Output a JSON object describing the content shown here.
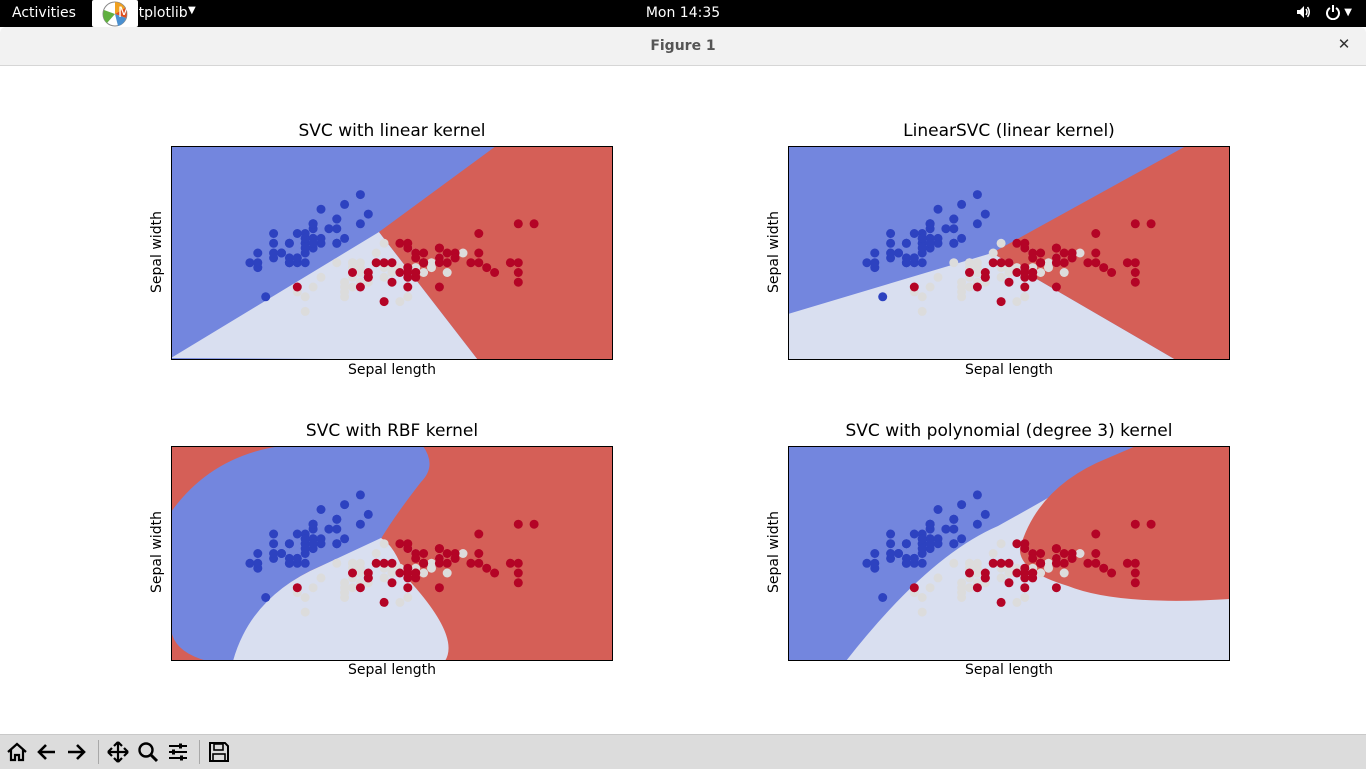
{
  "topbar": {
    "activities": "Activities",
    "app_name": "Matplotlib",
    "clock": "Mon 14:35"
  },
  "window": {
    "title": "Figure 1"
  },
  "icons": {
    "app": "matplotlib-icon",
    "volume": "volume-icon",
    "power": "power-icon",
    "close": "close-icon",
    "toolbar": [
      "home-icon",
      "back-icon",
      "forward-icon",
      "pan-icon",
      "zoom-icon",
      "subplots-config-icon",
      "save-icon"
    ]
  },
  "colors": {
    "class_0_region": "#7386de",
    "class_1_region": "#d9dff0",
    "class_2_region": "#d55f57",
    "class_0_point": "#2d42c0",
    "class_1_point": "#dcdcdc",
    "class_2_point": "#b40426"
  },
  "chart_data": [
    {
      "type": "scatter",
      "title": "SVC with linear kernel",
      "xlabel": "Sepal length",
      "ylabel": "Sepal width",
      "ticks": "hidden",
      "xlim": [
        3.3,
        8.9
      ],
      "ylim": [
        1.0,
        5.4
      ]
    },
    {
      "type": "scatter",
      "title": "LinearSVC (linear kernel)",
      "xlabel": "Sepal length",
      "ylabel": "Sepal width",
      "ticks": "hidden",
      "xlim": [
        3.3,
        8.9
      ],
      "ylim": [
        1.0,
        5.4
      ]
    },
    {
      "type": "scatter",
      "title": "SVC with RBF kernel",
      "xlabel": "Sepal length",
      "ylabel": "Sepal width",
      "ticks": "hidden",
      "xlim": [
        3.3,
        8.9
      ],
      "ylim": [
        1.0,
        5.4
      ]
    },
    {
      "type": "scatter",
      "title": "SVC with polynomial (degree 3) kernel",
      "xlabel": "Sepal length",
      "ylabel": "Sepal width",
      "ticks": "hidden",
      "xlim": [
        3.3,
        8.9
      ],
      "ylim": [
        1.0,
        5.4
      ]
    }
  ],
  "points": {
    "class_0": [
      [
        5.1,
        3.5
      ],
      [
        4.9,
        3.0
      ],
      [
        4.7,
        3.2
      ],
      [
        4.6,
        3.1
      ],
      [
        5.0,
        3.6
      ],
      [
        5.4,
        3.9
      ],
      [
        4.6,
        3.4
      ],
      [
        5.0,
        3.4
      ],
      [
        4.4,
        2.9
      ],
      [
        4.9,
        3.1
      ],
      [
        5.4,
        3.7
      ],
      [
        4.8,
        3.4
      ],
      [
        4.8,
        3.0
      ],
      [
        4.3,
        3.0
      ],
      [
        5.8,
        4.0
      ],
      [
        5.7,
        4.4
      ],
      [
        5.4,
        3.9
      ],
      [
        5.1,
        3.5
      ],
      [
        5.7,
        3.8
      ],
      [
        5.1,
        3.8
      ],
      [
        5.4,
        3.4
      ],
      [
        5.1,
        3.7
      ],
      [
        4.6,
        3.6
      ],
      [
        5.1,
        3.3
      ],
      [
        4.8,
        3.4
      ],
      [
        5.0,
        3.0
      ],
      [
        5.0,
        3.4
      ],
      [
        5.2,
        3.5
      ],
      [
        5.2,
        3.4
      ],
      [
        4.7,
        3.2
      ],
      [
        4.8,
        3.1
      ],
      [
        5.4,
        3.4
      ],
      [
        5.2,
        4.1
      ],
      [
        5.5,
        4.2
      ],
      [
        4.9,
        3.1
      ],
      [
        5.0,
        3.2
      ],
      [
        5.5,
        3.5
      ],
      [
        4.9,
        3.6
      ],
      [
        4.4,
        3.0
      ],
      [
        5.1,
        3.4
      ],
      [
        5.0,
        3.5
      ],
      [
        4.5,
        2.3
      ],
      [
        4.4,
        3.2
      ],
      [
        5.0,
        3.5
      ],
      [
        5.1,
        3.8
      ],
      [
        4.8,
        3.0
      ],
      [
        5.1,
        3.8
      ],
      [
        4.6,
        3.2
      ],
      [
        5.3,
        3.7
      ],
      [
        5.0,
        3.3
      ]
    ],
    "class_1": [
      [
        7.0,
        3.2
      ],
      [
        6.4,
        3.2
      ],
      [
        6.9,
        3.1
      ],
      [
        5.5,
        2.3
      ],
      [
        6.5,
        2.8
      ],
      [
        5.7,
        2.8
      ],
      [
        6.3,
        3.3
      ],
      [
        4.9,
        2.4
      ],
      [
        6.6,
        2.9
      ],
      [
        5.2,
        2.7
      ],
      [
        5.0,
        2.0
      ],
      [
        5.9,
        3.0
      ],
      [
        6.0,
        2.2
      ],
      [
        6.1,
        2.9
      ],
      [
        5.6,
        2.9
      ],
      [
        6.7,
        3.1
      ],
      [
        5.6,
        3.0
      ],
      [
        5.8,
        2.7
      ],
      [
        6.2,
        2.2
      ],
      [
        5.6,
        2.5
      ],
      [
        5.9,
        3.2
      ],
      [
        6.1,
        2.8
      ],
      [
        6.3,
        2.5
      ],
      [
        6.1,
        2.8
      ],
      [
        6.4,
        2.9
      ],
      [
        6.6,
        3.0
      ],
      [
        6.8,
        2.8
      ],
      [
        6.7,
        3.0
      ],
      [
        6.0,
        2.9
      ],
      [
        5.7,
        2.6
      ],
      [
        5.5,
        2.4
      ],
      [
        5.8,
        2.7
      ],
      [
        6.0,
        2.7
      ],
      [
        5.4,
        3.0
      ],
      [
        6.0,
        3.4
      ],
      [
        6.7,
        3.1
      ],
      [
        6.3,
        2.3
      ],
      [
        5.6,
        3.0
      ],
      [
        5.5,
        2.5
      ],
      [
        5.5,
        2.6
      ],
      [
        6.1,
        3.0
      ],
      [
        5.8,
        2.6
      ],
      [
        5.0,
        2.3
      ],
      [
        5.6,
        2.7
      ],
      [
        5.7,
        3.0
      ],
      [
        5.7,
        2.9
      ],
      [
        6.2,
        2.9
      ],
      [
        5.1,
        2.5
      ],
      [
        5.7,
        2.8
      ]
    ],
    "class_2": [
      [
        6.3,
        3.3
      ],
      [
        5.8,
        2.7
      ],
      [
        7.1,
        3.0
      ],
      [
        6.3,
        2.9
      ],
      [
        6.5,
        3.0
      ],
      [
        7.6,
        3.0
      ],
      [
        4.9,
        2.5
      ],
      [
        7.3,
        2.9
      ],
      [
        6.7,
        2.5
      ],
      [
        7.2,
        3.6
      ],
      [
        6.5,
        3.2
      ],
      [
        6.4,
        2.7
      ],
      [
        6.8,
        3.0
      ],
      [
        5.7,
        2.5
      ],
      [
        5.8,
        2.8
      ],
      [
        6.4,
        3.2
      ],
      [
        6.5,
        3.0
      ],
      [
        7.7,
        3.8
      ],
      [
        7.7,
        2.6
      ],
      [
        6.0,
        2.2
      ],
      [
        6.9,
        3.2
      ],
      [
        5.6,
        2.8
      ],
      [
        7.7,
        2.8
      ],
      [
        6.3,
        2.7
      ],
      [
        6.7,
        3.3
      ],
      [
        7.2,
        3.2
      ],
      [
        6.2,
        2.8
      ],
      [
        6.1,
        3.0
      ],
      [
        6.4,
        2.8
      ],
      [
        7.2,
        3.0
      ],
      [
        7.4,
        2.8
      ],
      [
        7.9,
        3.8
      ],
      [
        6.4,
        2.8
      ],
      [
        6.3,
        2.8
      ],
      [
        6.1,
        2.6
      ],
      [
        7.7,
        3.0
      ],
      [
        6.3,
        3.4
      ],
      [
        6.4,
        3.1
      ],
      [
        6.0,
        3.0
      ],
      [
        6.9,
        3.1
      ],
      [
        6.7,
        3.1
      ],
      [
        6.9,
        3.1
      ],
      [
        5.8,
        2.7
      ],
      [
        6.8,
        3.2
      ],
      [
        6.7,
        3.3
      ],
      [
        6.7,
        3.0
      ],
      [
        6.3,
        2.5
      ],
      [
        6.5,
        3.0
      ],
      [
        6.2,
        3.4
      ],
      [
        5.9,
        3.0
      ]
    ]
  },
  "toolbar": {}
}
